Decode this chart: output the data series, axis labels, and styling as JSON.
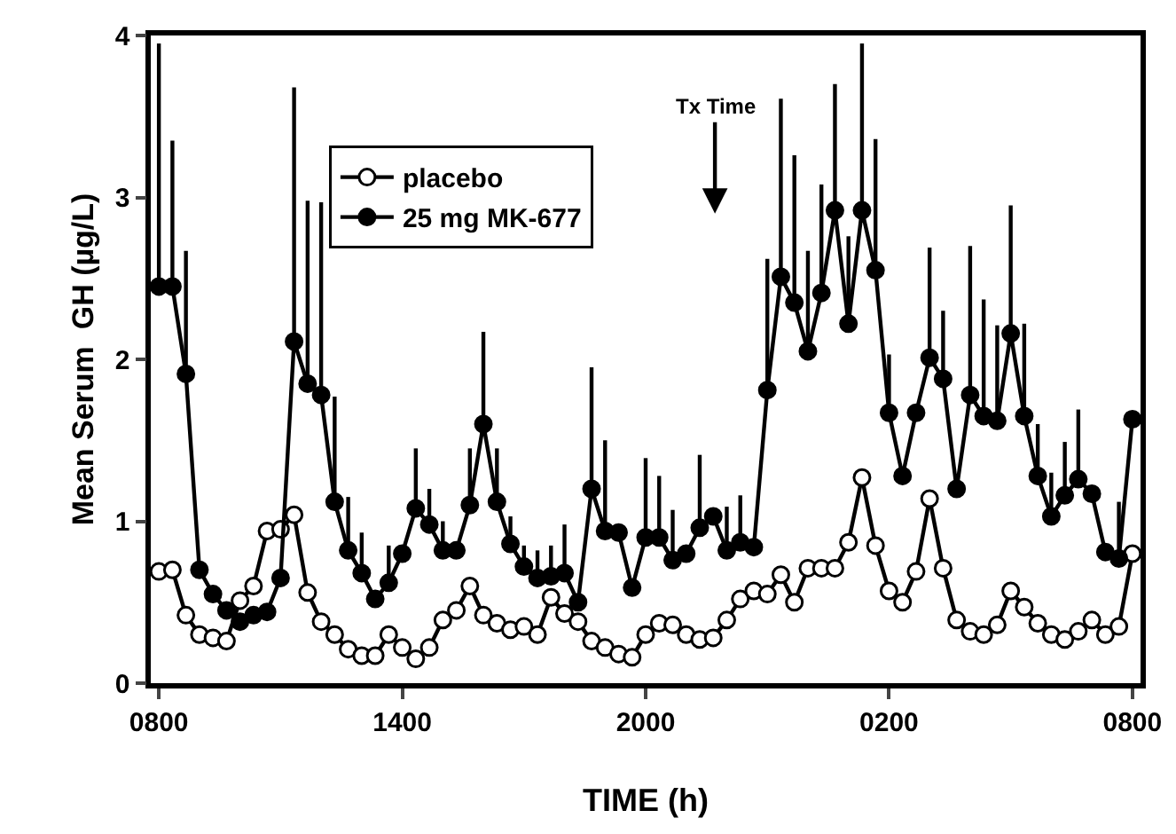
{
  "chart_data": {
    "type": "line",
    "xlabel": "TIME (h)",
    "ylabel": "Mean Serum  GH (µg/L)",
    "categories": [
      "0800",
      null,
      null,
      null,
      null,
      null,
      null,
      null,
      null,
      null,
      null,
      null,
      null,
      null,
      null,
      null,
      null,
      null,
      "1400",
      null,
      null,
      null,
      null,
      null,
      null,
      null,
      null,
      null,
      null,
      null,
      null,
      null,
      null,
      null,
      null,
      null,
      "2000",
      null,
      null,
      null,
      null,
      null,
      null,
      null,
      null,
      null,
      null,
      null,
      null,
      null,
      null,
      null,
      null,
      null,
      "0200",
      null,
      null,
      null,
      null,
      null,
      null,
      null,
      null,
      null,
      null,
      null,
      null,
      null,
      null,
      null,
      null,
      null,
      "0800"
    ],
    "ylim": [
      0,
      4
    ],
    "yticks": [
      0,
      1,
      2,
      3,
      4
    ],
    "grid": false,
    "legend": "top left",
    "marker": "circle",
    "line_style": "solid",
    "annotations": [
      "Tx Time"
    ],
    "series": [
      {
        "name": "placebo",
        "color": "#ffffff",
        "values": [
          0.69,
          0.7,
          0.42,
          0.3,
          0.28,
          0.26,
          0.51,
          0.6,
          0.94,
          0.95,
          1.04,
          0.56,
          0.38,
          0.3,
          0.21,
          0.17,
          0.17,
          0.3,
          0.22,
          0.15,
          0.22,
          0.39,
          0.45,
          0.6,
          0.42,
          0.37,
          0.33,
          0.35,
          0.3,
          0.53,
          0.43,
          0.38,
          0.26,
          0.22,
          0.18,
          0.16,
          0.3,
          0.37,
          0.36,
          0.3,
          0.27,
          0.28,
          0.39,
          0.52,
          0.57,
          0.55,
          0.67,
          0.5,
          0.71,
          0.71,
          0.71,
          0.87,
          1.27,
          0.85,
          0.57,
          0.5,
          0.69,
          1.14,
          0.71,
          0.39,
          0.32,
          0.3,
          0.36,
          0.57,
          0.47,
          0.37,
          0.3,
          0.27,
          0.32,
          0.39,
          0.3,
          0.35,
          0.8
        ]
      },
      {
        "name": "25 mg MK-677",
        "color": "#000000",
        "values": [
          2.45,
          2.45,
          1.91,
          0.7,
          0.55,
          0.45,
          0.38,
          0.42,
          0.44,
          0.65,
          2.11,
          1.85,
          1.78,
          1.12,
          0.82,
          0.68,
          0.52,
          0.62,
          0.8,
          1.08,
          0.98,
          0.82,
          0.82,
          1.1,
          1.6,
          1.12,
          0.86,
          0.72,
          0.65,
          0.66,
          0.68,
          0.5,
          1.2,
          0.94,
          0.93,
          0.59,
          0.9,
          0.9,
          0.76,
          0.8,
          0.96,
          1.03,
          0.82,
          0.87,
          0.84,
          1.81,
          2.51,
          2.35,
          2.05,
          2.41,
          2.92,
          2.22,
          2.92,
          2.55,
          1.67,
          1.28,
          1.67,
          2.01,
          1.88,
          1.2,
          1.78,
          1.65,
          1.62,
          2.16,
          1.65,
          1.28,
          1.03,
          1.16,
          1.26,
          1.17,
          0.81,
          0.77,
          1.63
        ],
        "errors": [
          [
            2.45,
            3.95
          ],
          [
            2.45,
            3.35
          ],
          [
            1.91,
            2.67
          ],
          null,
          null,
          null,
          null,
          null,
          null,
          null,
          [
            2.11,
            3.68
          ],
          [
            1.85,
            2.98
          ],
          [
            1.78,
            2.97
          ],
          [
            1.12,
            1.77
          ],
          [
            0.82,
            1.15
          ],
          [
            0.68,
            0.93
          ],
          null,
          [
            0.62,
            0.85
          ],
          null,
          [
            1.08,
            1.45
          ],
          [
            0.98,
            1.2
          ],
          [
            0.82,
            1.0
          ],
          null,
          [
            1.1,
            1.45
          ],
          [
            1.6,
            2.17
          ],
          [
            1.12,
            1.45
          ],
          [
            0.86,
            1.03
          ],
          [
            0.72,
            0.85
          ],
          [
            0.65,
            0.82
          ],
          [
            0.66,
            0.85
          ],
          [
            0.68,
            0.98
          ],
          null,
          [
            1.2,
            1.95
          ],
          [
            0.94,
            1.5
          ],
          null,
          null,
          [
            0.9,
            1.39
          ],
          [
            0.9,
            1.28
          ],
          [
            0.76,
            1.07
          ],
          null,
          [
            0.96,
            1.41
          ],
          null,
          [
            0.82,
            1.09
          ],
          [
            0.87,
            1.16
          ],
          null,
          [
            1.81,
            2.62
          ],
          [
            2.51,
            3.61
          ],
          [
            2.35,
            3.26
          ],
          [
            2.05,
            2.67
          ],
          [
            2.41,
            3.08
          ],
          [
            2.92,
            3.7
          ],
          [
            2.22,
            2.76
          ],
          [
            2.92,
            3.95
          ],
          [
            2.55,
            3.36
          ],
          [
            1.67,
            2.03
          ],
          null,
          null,
          [
            2.01,
            2.69
          ],
          [
            1.88,
            2.3
          ],
          null,
          [
            1.78,
            2.7
          ],
          [
            1.65,
            2.37
          ],
          [
            1.62,
            2.21
          ],
          [
            2.16,
            2.95
          ],
          [
            1.65,
            2.22
          ],
          [
            1.28,
            1.6
          ],
          [
            1.03,
            1.3
          ],
          [
            1.16,
            1.49
          ],
          [
            1.26,
            1.69
          ],
          null,
          null,
          [
            0.77,
            1.12
          ],
          null
        ]
      }
    ]
  }
}
